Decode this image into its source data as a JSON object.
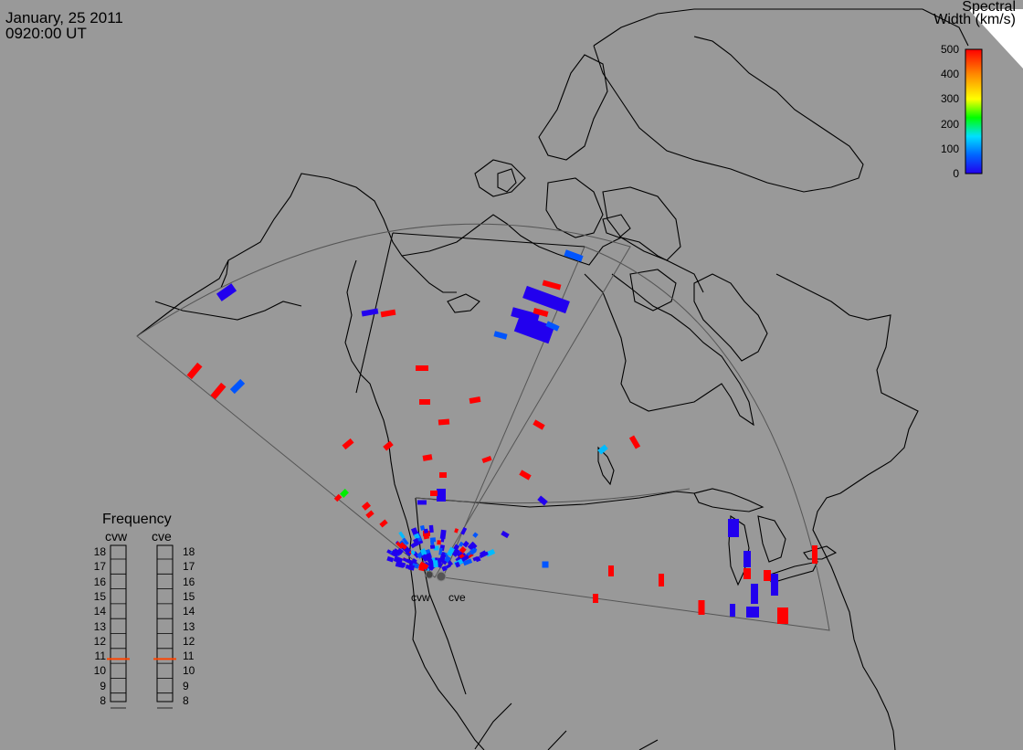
{
  "header": {
    "date": "January, 25 2011",
    "time": "0920:00 UT"
  },
  "colorbar": {
    "title_line1": "Spectral",
    "title_line2": "Width (km/s)",
    "ticks": [
      "500",
      "400",
      "300",
      "200",
      "100",
      "0"
    ],
    "min": 0,
    "max": 500,
    "colors": [
      "#ff0000",
      "#ff8800",
      "#ffff00",
      "#00ff00",
      "#00e0ff",
      "#0066ff",
      "#2200ee"
    ]
  },
  "frequency_panel": {
    "title": "Frequency",
    "radars": [
      {
        "label": "cvw",
        "value_mhz": 10.8
      },
      {
        "label": "cve",
        "value_mhz": 10.8
      }
    ],
    "ticks": [
      "18",
      "17",
      "16",
      "15",
      "14",
      "13",
      "12",
      "11",
      "10",
      "9",
      "8"
    ],
    "min": 8,
    "max": 18,
    "marker_color": "#ff4400"
  },
  "sites": [
    {
      "label": "cvw"
    },
    {
      "label": "cve"
    }
  ],
  "colors": {
    "background": "#999999",
    "land": "#999999",
    "coast": "#000000",
    "fov": "#555555",
    "white_corner": "#ffffff"
  }
}
